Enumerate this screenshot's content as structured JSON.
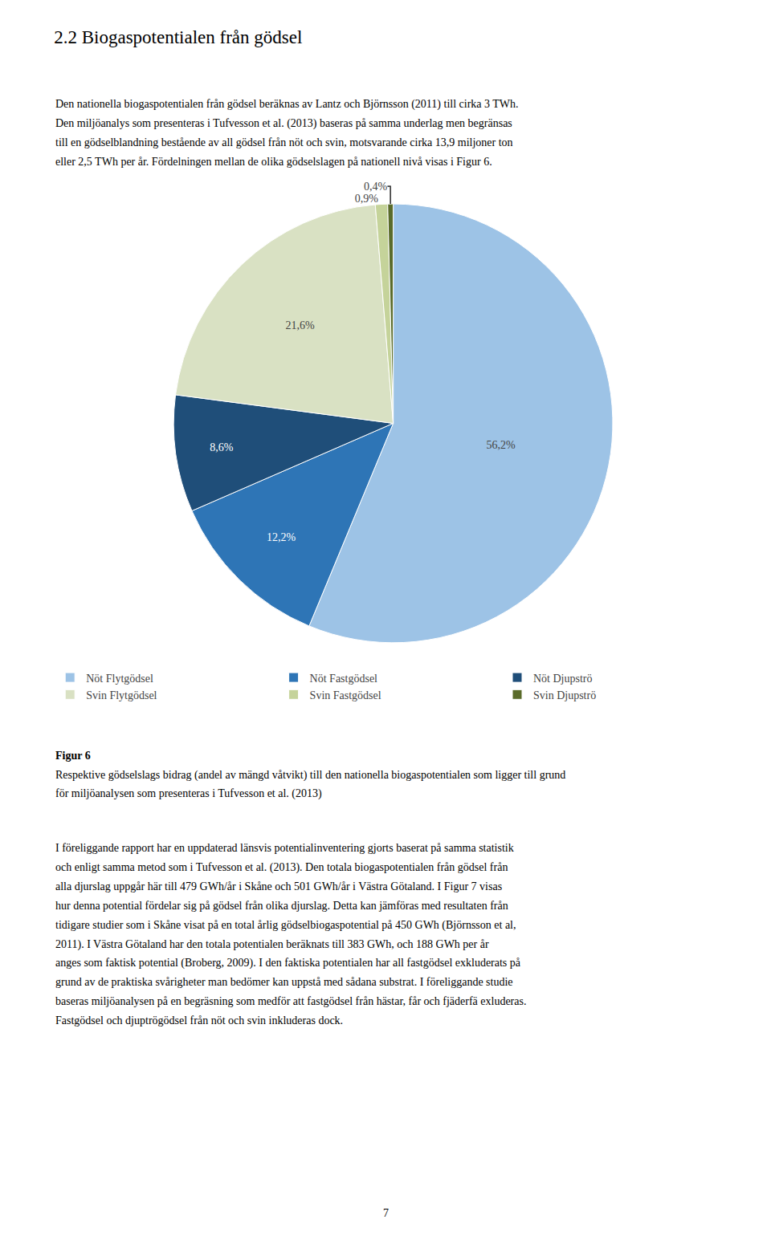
{
  "chart_data": {
    "type": "pie",
    "title": "2.2 Biogaspotentialen från gödsel",
    "categories": [
      "Nöt Flytgödsel",
      "Nöt Fastgödsel",
      "Nöt Djupströ",
      "Svin Flytgödsel",
      "Svin Fastgödsel",
      "Svin Djupströ"
    ],
    "values": [
      56.2,
      12.2,
      8.6,
      21.6,
      0.9,
      0.4
    ],
    "value_labels": [
      "56,2%",
      "12,2%",
      "8,6%",
      "21,6%",
      "0,9%",
      "0,4%"
    ],
    "colors": [
      "#9DC3E6",
      "#2E75B6",
      "#1F4E79",
      "#D9E1C3",
      "#C5D39A",
      "#5A6B2A"
    ],
    "data_labels": true,
    "legend": "bottom",
    "annotations": [
      [
        "Den nationella biogaspotentialen från gödsel beräknas av Lantz och Björnsson (2011) till cirka 3 TWh.",
        "Den miljöanalys som presenteras i Tufvesson et al. (2013) baseras på samma underlag men begränsas",
        "till en gödselblandning bestående av all gödsel från nöt och svin, motsvarande cirka 13,9 miljoner ton",
        "eller 2,5 TWh per år. Fördelningen mellan de olika gödselslagen på nationell nivå visas i Figur 6."
      ],
      [
        "Figur 6",
        "Respektive gödselslags bidrag (andel av mängd våtvikt) till den nationella biogaspotentialen som ligger till grund",
        "för miljöanalysen som presenteras i Tufvesson et al. (2013)"
      ],
      [
        "I föreliggande rapport har en uppdaterad länsvis potentialinventering gjorts baserat på samma statistik",
        "och enligt samma metod som i Tufvesson et al. (2013). Den totala biogaspotentialen från gödsel från",
        "alla djurslag uppgår här till 479 GWh/år i Skåne och 501 GWh/år i Västra Götaland. I Figur 7 visas",
        "hur denna potential fördelar sig på gödsel från olika djurslag. Detta kan jämföras med resultaten från",
        "tidigare studier som i Skåne visat på en total årlig gödselbiogaspotential på 450 GWh (Björnsson et al,",
        "2011). I Västra Götaland har den totala potentialen beräknats till 383 GWh, och 188 GWh per år",
        "anges som faktisk potential (Broberg, 2009). I den faktiska potentialen har all fastgödsel exkluderats på",
        "grund av de praktiska svårigheter man bedömer kan uppstå med sådana substrat. I föreliggande studie",
        "baseras miljöanalysen på en begräsning som medför att fastgödsel från hästar, får och fjäderfä exluderas.",
        "Fastgödsel och djuptrögödsel från nöt och svin inkluderas dock."
      ],
      [
        "7"
      ]
    ]
  }
}
